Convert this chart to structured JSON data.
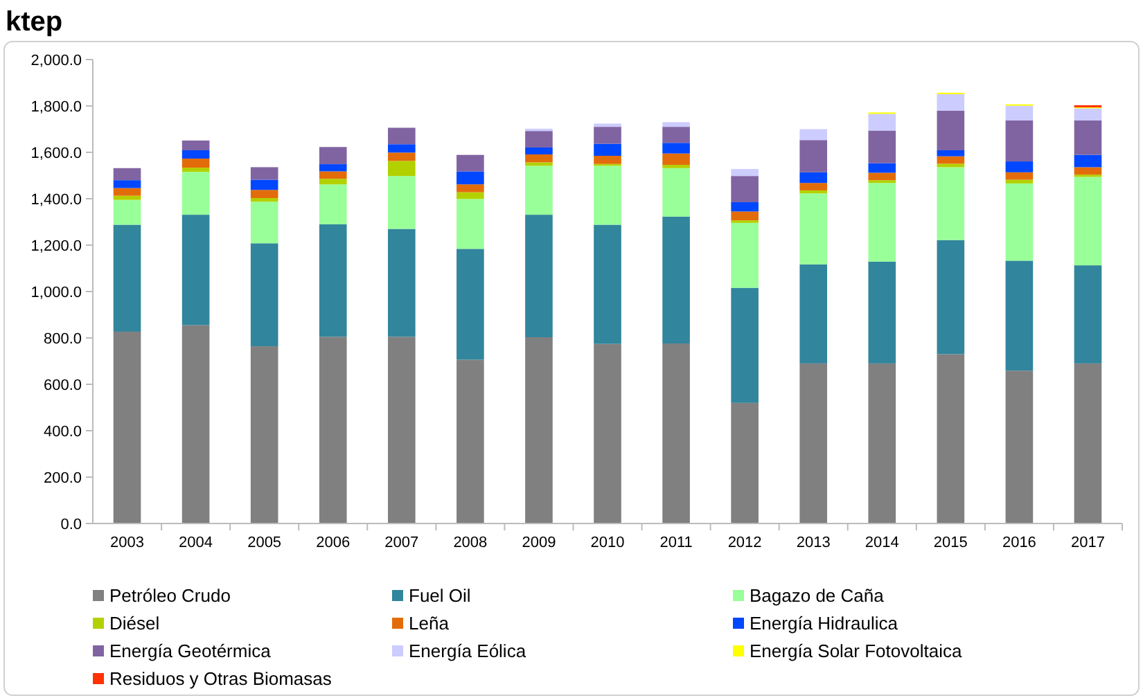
{
  "chart_data": {
    "type": "bar",
    "title": "ktep",
    "stacked": true,
    "legend": "bottom",
    "categories": [
      "2003",
      "2004",
      "2005",
      "2006",
      "2007",
      "2008",
      "2009",
      "2010",
      "2011",
      "2012",
      "2013",
      "2014",
      "2015",
      "2016",
      "2017"
    ],
    "ylim": [
      0,
      2000
    ],
    "yticks": [
      {
        "value": 0,
        "label": "0.0"
      },
      {
        "value": 200,
        "label": "200.0"
      },
      {
        "value": 400,
        "label": "400.0"
      },
      {
        "value": 600,
        "label": "600.0"
      },
      {
        "value": 800,
        "label": "800.0"
      },
      {
        "value": 1000,
        "label": "1,000.0"
      },
      {
        "value": 1200,
        "label": "1,200.0"
      },
      {
        "value": 1400,
        "label": "1,400.0"
      },
      {
        "value": 1600,
        "label": "1,600.0"
      },
      {
        "value": 1800,
        "label": "1,800.0"
      },
      {
        "value": 2000,
        "label": "2,000.0"
      }
    ],
    "series": [
      {
        "name": "Petróleo Crudo",
        "color": "#808080",
        "values": [
          827,
          855,
          764,
          805,
          805,
          706,
          803,
          774,
          776,
          520,
          690,
          690,
          730,
          659,
          690
        ]
      },
      {
        "name": "Fuel Oil",
        "color": "#31859c",
        "values": [
          461,
          476,
          444,
          485,
          465,
          478,
          528,
          514,
          547,
          496,
          427,
          439,
          492,
          474,
          423
        ]
      },
      {
        "name": "Bagazo de Caña",
        "color": "#99ff99",
        "values": [
          107,
          185,
          179,
          172,
          228,
          215,
          211,
          254,
          209,
          280,
          306,
          339,
          314,
          333,
          381
        ]
      },
      {
        "name": "Diésel",
        "color": "#b3d100",
        "values": [
          18,
          18,
          16,
          24,
          65,
          29,
          15,
          8,
          14,
          11,
          13,
          12,
          15,
          16,
          10
        ]
      },
      {
        "name": "Leña",
        "color": "#e36c0a",
        "values": [
          33,
          39,
          35,
          32,
          36,
          34,
          34,
          35,
          49,
          38,
          32,
          32,
          32,
          32,
          32
        ]
      },
      {
        "name": "Energía Hidraulica",
        "color": "#0047ff",
        "values": [
          34,
          36,
          44,
          31,
          36,
          56,
          30,
          52,
          46,
          40,
          46,
          41,
          26,
          47,
          53
        ]
      },
      {
        "name": "Energía Geotérmica",
        "color": "#8064a2",
        "values": [
          52,
          42,
          54,
          74,
          71,
          71,
          71,
          73,
          69,
          113,
          139,
          141,
          171,
          177,
          149
        ]
      },
      {
        "name": "Energía Eólica",
        "color": "#ccccff",
        "values": [
          0,
          0,
          0,
          0,
          0,
          0,
          10,
          14,
          20,
          30,
          47,
          72,
          71,
          63,
          52
        ]
      },
      {
        "name": "Energía Solar Fotovoltaica",
        "color": "#ffff00",
        "values": [
          0,
          0,
          0,
          0,
          0,
          0,
          0,
          0,
          0,
          0,
          0,
          6,
          6,
          6,
          4
        ]
      },
      {
        "name": "Residuos y Otras Biomasas",
        "color": "#ff3300",
        "values": [
          0,
          0,
          0,
          0,
          0,
          0,
          0,
          0,
          0,
          0,
          0,
          0,
          0,
          0,
          9
        ]
      }
    ]
  }
}
